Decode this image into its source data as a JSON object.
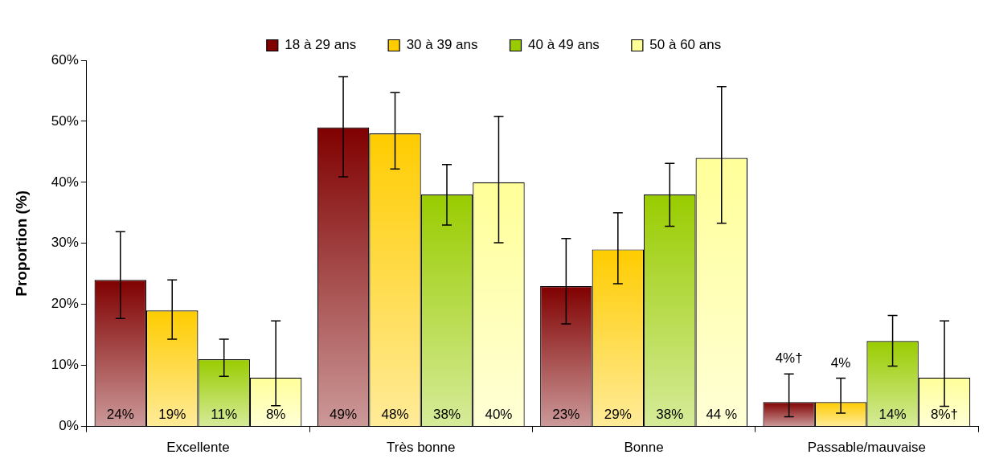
{
  "chart_data": {
    "type": "bar",
    "ylabel": "Proportion (%)",
    "categories": [
      "Excellente",
      "Très bonne",
      "Bonne",
      "Passable/mauvaise"
    ],
    "series": [
      {
        "name": "18 à 29 ans",
        "color": "#800000",
        "values": [
          24,
          49,
          23,
          4
        ],
        "errors": [
          [
            17.7,
            31.9
          ],
          [
            40.9,
            57.3
          ],
          [
            16.8,
            30.8
          ],
          [
            1.6,
            8.6
          ]
        ],
        "value_labels": [
          "24%",
          "49%",
          "23%",
          "4%†"
        ]
      },
      {
        "name": "30 à 39 ans",
        "color": "#ffcc00",
        "values": [
          19,
          48,
          29,
          4
        ],
        "errors": [
          [
            14.3,
            24.0
          ],
          [
            42.2,
            54.7
          ],
          [
            23.4,
            35.0
          ],
          [
            2.2,
            7.9
          ]
        ],
        "value_labels": [
          "19%",
          "48%",
          "29%",
          "4%"
        ]
      },
      {
        "name": "40 à 49 ans",
        "color": "#99cc00",
        "values": [
          11,
          38,
          38,
          14
        ],
        "errors": [
          [
            8.2,
            14.3
          ],
          [
            33.0,
            42.9
          ],
          [
            32.8,
            43.1
          ],
          [
            9.9,
            18.2
          ]
        ],
        "value_labels": [
          "11%",
          "38%",
          "38%",
          "14%"
        ]
      },
      {
        "name": "50 à 60 ans",
        "color": "#ffff99",
        "values": [
          8,
          40,
          44,
          8
        ],
        "errors": [
          [
            3.4,
            17.3
          ],
          [
            30.1,
            50.8
          ],
          [
            33.3,
            55.7
          ],
          [
            3.3,
            17.3
          ]
        ],
        "value_labels": [
          "8%",
          "40%",
          "44 %",
          "8%†"
        ]
      }
    ],
    "ylim": [
      0,
      60
    ],
    "yticks": [
      {
        "value": 0,
        "label": "0%"
      },
      {
        "value": 10,
        "label": "10%"
      },
      {
        "value": 20,
        "label": "20%"
      },
      {
        "value": 30,
        "label": "30%"
      },
      {
        "value": 40,
        "label": "40%"
      },
      {
        "value": 50,
        "label": "50%"
      },
      {
        "value": 60,
        "label": "60%"
      }
    ],
    "grid": false,
    "legend": "top"
  }
}
